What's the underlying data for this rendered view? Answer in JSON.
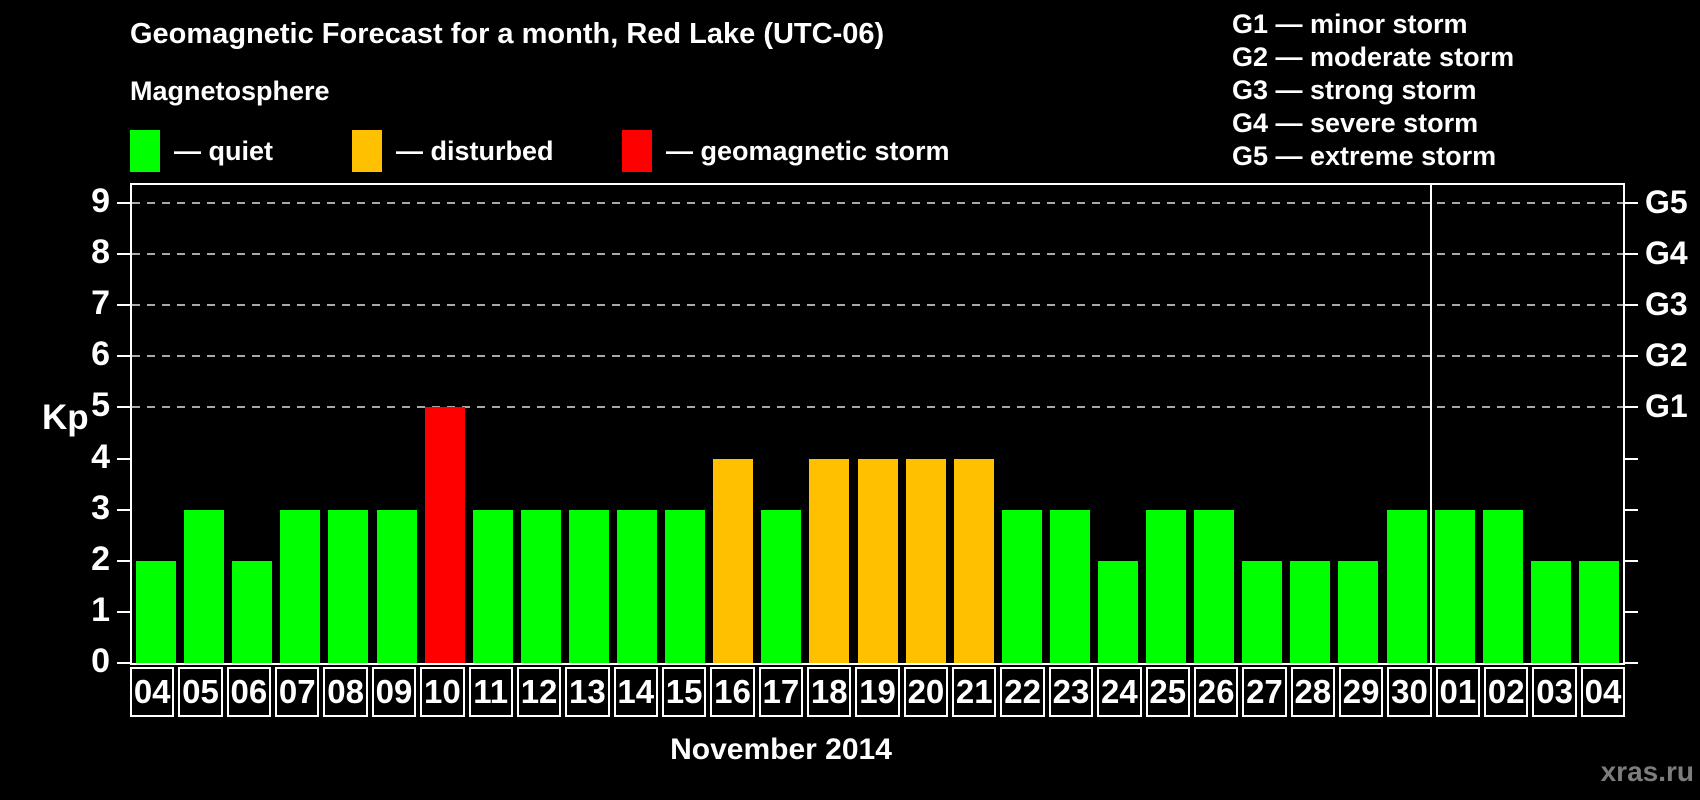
{
  "title": "Geomagnetic Forecast for a month, Red Lake (UTC-06)",
  "legend": {
    "heading": "Magnetosphere",
    "items": [
      {
        "key": "quiet",
        "label": "— quiet",
        "color": "#00ff00"
      },
      {
        "key": "disturbed",
        "label": "— disturbed",
        "color": "#ffc000"
      },
      {
        "key": "storm",
        "label": "— geomagnetic storm",
        "color": "#ff0000"
      }
    ]
  },
  "g_scale_legend": [
    "G1 — minor storm",
    "G2 — moderate storm",
    "G3 — strong storm",
    "G4 — severe storm",
    "G5 — extreme storm"
  ],
  "watermark": "xras.ru",
  "colors": {
    "quiet": "#00ff00",
    "disturbed": "#ffc000",
    "storm": "#ff0000",
    "background": "#000000",
    "foreground": "#ffffff",
    "gridline": "#a8a8a8",
    "watermark": "#7d7d7d"
  },
  "chart_data": {
    "type": "bar",
    "title": "Geomagnetic Forecast for a month, Red Lake (UTC-06)",
    "xlabel": "November 2014",
    "ylabel": "Kp",
    "ylim": [
      0,
      9.35
    ],
    "yticks": [
      0,
      1,
      2,
      3,
      4,
      5,
      6,
      7,
      8,
      9
    ],
    "gridlines_at_kp": [
      5,
      6,
      7,
      8,
      9
    ],
    "grid": "dashed",
    "legend_position": "top-left",
    "right_axis": [
      {
        "label": "G1",
        "kp": 5
      },
      {
        "label": "G2",
        "kp": 6
      },
      {
        "label": "G3",
        "kp": 7
      },
      {
        "label": "G4",
        "kp": 8
      },
      {
        "label": "G5",
        "kp": 9
      }
    ],
    "categories": [
      "04",
      "05",
      "06",
      "07",
      "08",
      "09",
      "10",
      "11",
      "12",
      "13",
      "14",
      "15",
      "16",
      "17",
      "18",
      "19",
      "20",
      "21",
      "22",
      "23",
      "24",
      "25",
      "26",
      "27",
      "28",
      "29",
      "30",
      "01",
      "02",
      "03",
      "04"
    ],
    "values": [
      2,
      3,
      2,
      3,
      3,
      3,
      5,
      3,
      3,
      3,
      3,
      3,
      4,
      3,
      4,
      4,
      4,
      4,
      3,
      3,
      2,
      3,
      3,
      2,
      2,
      2,
      3,
      3,
      3,
      2,
      2
    ],
    "color_rules": {
      "quiet_max_kp": 3,
      "disturbed_max_kp": 4
    },
    "month_boundary_after_index": 26
  }
}
